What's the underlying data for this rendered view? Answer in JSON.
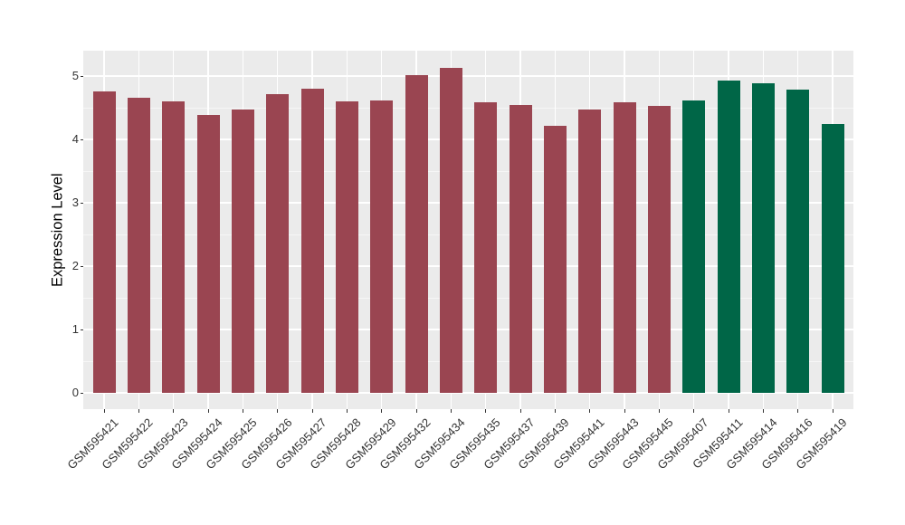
{
  "figure": {
    "background": "#FFFFFF"
  },
  "chart_data": {
    "type": "bar",
    "title": "",
    "xlabel": "",
    "ylabel": "Expression Level",
    "ylim": [
      0,
      5.4
    ],
    "yticks": [
      0,
      1,
      2,
      3,
      4,
      5
    ],
    "y_minor_ticks": [
      0.5,
      1.5,
      2.5,
      3.5,
      4.5
    ],
    "grid": "on",
    "legend_position": "none",
    "panel_background": "#EBEBEB",
    "grid_color": "#FFFFFF",
    "axis_text_color": "#333333",
    "categories": [
      "GSM595421",
      "GSM595422",
      "GSM595423",
      "GSM595424",
      "GSM595425",
      "GSM595426",
      "GSM595427",
      "GSM595428",
      "GSM595429",
      "GSM595432",
      "GSM595434",
      "GSM595435",
      "GSM595437",
      "GSM595439",
      "GSM595441",
      "GSM595443",
      "GSM595445",
      "GSM595407",
      "GSM595411",
      "GSM595414",
      "GSM595416",
      "GSM595419"
    ],
    "values": [
      4.76,
      4.66,
      4.6,
      4.39,
      4.47,
      4.72,
      4.8,
      4.6,
      4.62,
      5.01,
      5.13,
      4.59,
      4.55,
      4.22,
      4.47,
      4.58,
      4.53,
      4.62,
      4.93,
      4.89,
      4.79,
      4.25
    ],
    "bar_groups": [
      "maroon",
      "maroon",
      "maroon",
      "maroon",
      "maroon",
      "maroon",
      "maroon",
      "maroon",
      "maroon",
      "maroon",
      "maroon",
      "maroon",
      "maroon",
      "maroon",
      "maroon",
      "maroon",
      "maroon",
      "green",
      "green",
      "green",
      "green",
      "green"
    ],
    "group_colors": {
      "maroon": "#9A4551",
      "green": "#006647"
    }
  }
}
